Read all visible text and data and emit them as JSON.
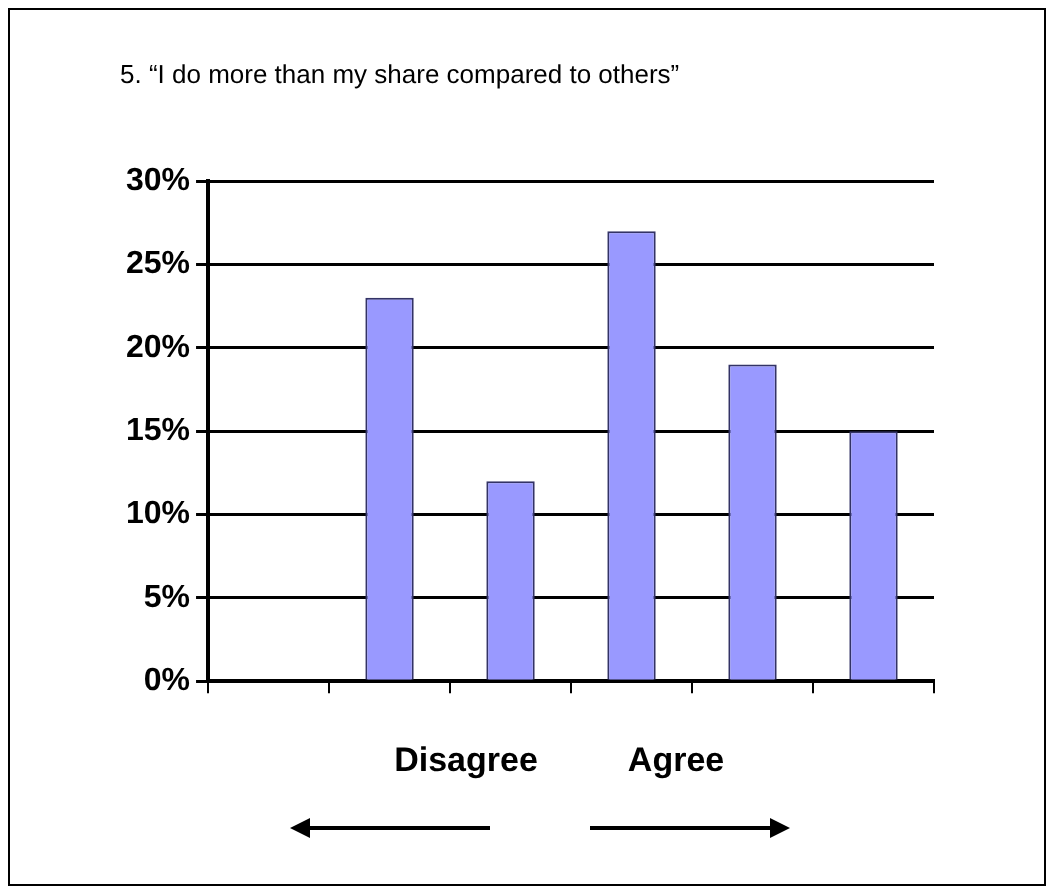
{
  "chart_data": {
    "type": "bar",
    "title": "5. “I do more than my share compared to others”",
    "categories": [
      null,
      null,
      null,
      null,
      null,
      null
    ],
    "values": [
      0,
      23,
      12,
      27,
      19,
      15
    ],
    "color": "#9999ff",
    "ylim": [
      0,
      30
    ],
    "yticks": [
      {
        "value": 0,
        "label": "0%"
      },
      {
        "value": 5,
        "label": "5%"
      },
      {
        "value": 10,
        "label": "10%"
      },
      {
        "value": 15,
        "label": "15%"
      },
      {
        "value": 20,
        "label": "20%"
      },
      {
        "value": 25,
        "label": "25%"
      },
      {
        "value": 30,
        "label": "30%"
      }
    ],
    "grid": "y",
    "legend": false,
    "annotations": [
      "Disagree",
      "Agree"
    ]
  }
}
